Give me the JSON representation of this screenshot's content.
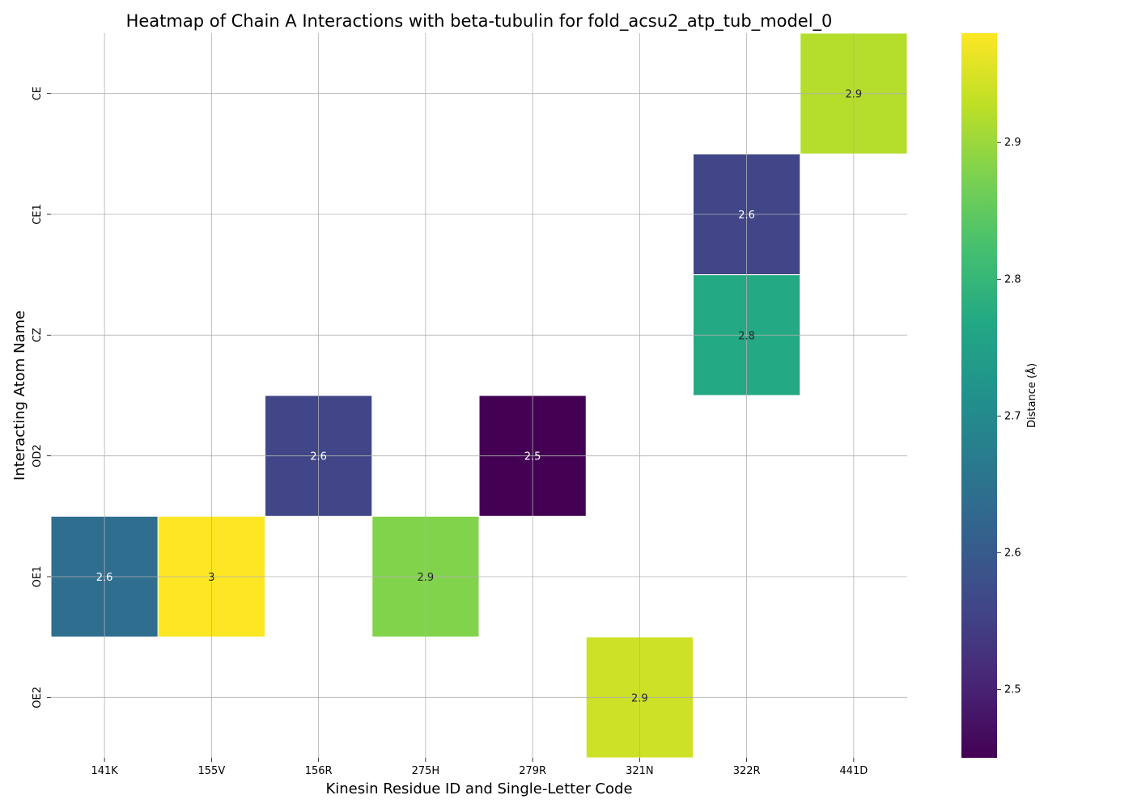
{
  "chart_data": {
    "type": "heatmap",
    "title": "Heatmap of Chain A Interactions with beta-tubulin for fold_acsu2_atp_tub_model_0",
    "xlabel": "Kinesin Residue ID and Single-Letter Code",
    "ylabel": "Interacting Atom Name",
    "x_categories": [
      "141K",
      "155V",
      "156R",
      "275H",
      "279R",
      "321N",
      "322R",
      "441D"
    ],
    "y_categories": [
      "CE",
      "CE1",
      "CZ",
      "OD2",
      "OE1",
      "OE2"
    ],
    "cells": [
      {
        "x": "441D",
        "y": "CE",
        "value": 2.9,
        "label": "2.9",
        "exact": 2.92
      },
      {
        "x": "322R",
        "y": "CE1",
        "value": 2.6,
        "label": "2.6",
        "exact": 2.56
      },
      {
        "x": "322R",
        "y": "CZ",
        "value": 2.8,
        "label": "2.8",
        "exact": 2.77
      },
      {
        "x": "156R",
        "y": "OD2",
        "value": 2.6,
        "label": "2.6",
        "exact": 2.56
      },
      {
        "x": "279R",
        "y": "OD2",
        "value": 2.5,
        "label": "2.5",
        "exact": 2.45
      },
      {
        "x": "141K",
        "y": "OE1",
        "value": 2.6,
        "label": "2.6",
        "exact": 2.64
      },
      {
        "x": "155V",
        "y": "OE1",
        "value": 3.0,
        "label": "3",
        "exact": 2.98
      },
      {
        "x": "275H",
        "y": "OE1",
        "value": 2.9,
        "label": "2.9",
        "exact": 2.88
      },
      {
        "x": "321N",
        "y": "OE2",
        "value": 2.9,
        "label": "2.9",
        "exact": 2.94
      }
    ],
    "colorbar": {
      "label": "Distance (Å)",
      "colormap": "viridis",
      "range": [
        2.45,
        2.98
      ],
      "ticks": [
        2.5,
        2.6,
        2.7,
        2.8,
        2.9
      ]
    },
    "grid": true,
    "legend": "colorbar-right"
  }
}
